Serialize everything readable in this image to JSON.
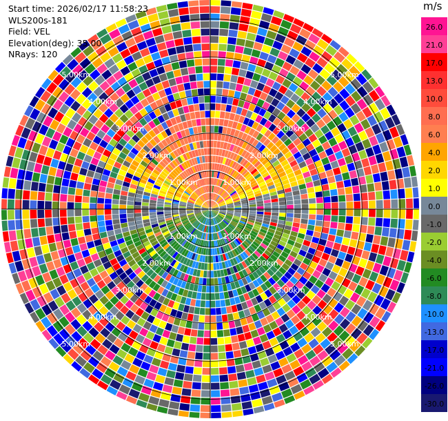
{
  "header": {
    "start_time": "Start time: 2026/02/17 11:58:23",
    "instrument": "WLS200s-181",
    "field": "Field: VEL",
    "elevation": "Elevation(deg): 35.00",
    "nrays": "NRays: 120"
  },
  "chart_data": {
    "type": "ppi-radar-polar",
    "field": "VEL",
    "units": "m/s",
    "nrays": 120,
    "elevation_deg": 35.0,
    "max_range_km": 5.5,
    "range_ring_labels": [
      "1.00km",
      "2.00km",
      "3.00km",
      "4.00km",
      "5.00km"
    ],
    "range_rings_km": [
      1,
      2,
      3,
      4,
      5
    ],
    "colorbar": {
      "ticks": [
        "26.0",
        "21.0",
        "17.0",
        "13.0",
        "10.0",
        "8.0",
        "6.0",
        "4.0",
        "2.0",
        "1.0",
        "0.0",
        "-1.0",
        "-2.0",
        "-4.0",
        "-6.0",
        "-8.0",
        "-10.0",
        "-13.0",
        "-17.0",
        "-21.0",
        "-26.0",
        "-30.0"
      ],
      "colors": [
        "#ff1493",
        "#ff3f96",
        "#ff0000",
        "#ff3030",
        "#ff4c3c",
        "#ff6e50",
        "#ff7f50",
        "#ffa500",
        "#ffd700",
        "#ffff00",
        "#778899",
        "#696969",
        "#9acd32",
        "#6b8e23",
        "#228b22",
        "#2e8b57",
        "#1e90ff",
        "#4169e1",
        "#0000cd",
        "#0000ff",
        "#000080",
        "#191970"
      ]
    },
    "pattern": "radial velocity: positive (warm) toward north, negative (cool) toward south near center; noisy/random values beyond ~2.5 km"
  }
}
